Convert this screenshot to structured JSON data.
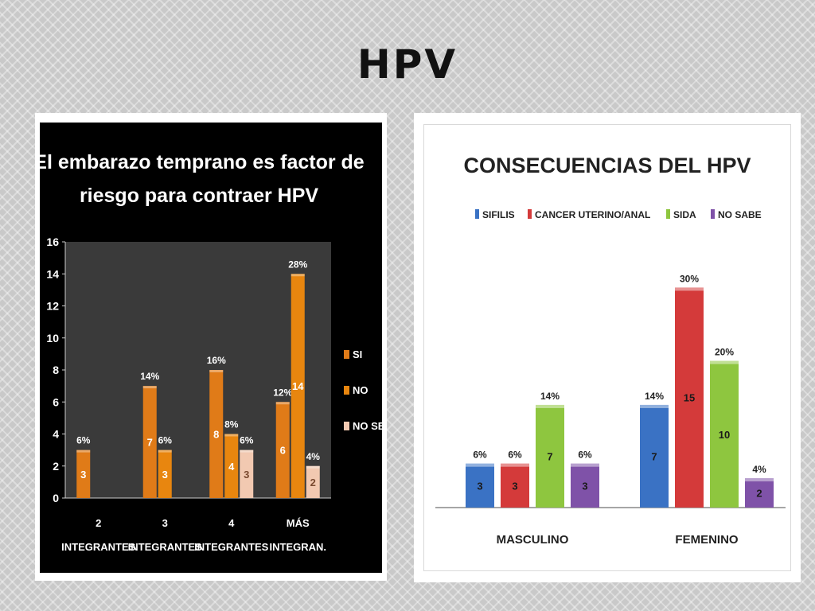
{
  "slide": {
    "title": "HPV"
  },
  "chart_data": [
    {
      "type": "bar",
      "title": "El embarazo temprano es factor de riesgo para contraer HPV",
      "title_lines": [
        "El embarazo temprano es factor de",
        "riesgo para contraer HPV"
      ],
      "categories": [
        "2 INTEGRANTES",
        "3 INTEGRANTES",
        "4 INTEGRANTES",
        "MÁS INTEGRAN."
      ],
      "category_lines": [
        [
          "2",
          "INTEGRANTES"
        ],
        [
          "3",
          "INTEGRANTES"
        ],
        [
          "4",
          "INTEGRANTES"
        ],
        [
          "MÁS",
          "INTEGRAN."
        ]
      ],
      "series": [
        {
          "name": "SI",
          "color": "#e07b18",
          "values": [
            3,
            7,
            8,
            6
          ],
          "value_labels": [
            "3",
            "7",
            "8",
            "6"
          ],
          "percent_labels": [
            "6%",
            "14%",
            "16%",
            "12%"
          ]
        },
        {
          "name": "NO",
          "color": "#e8860f",
          "values": [
            null,
            3,
            4,
            14
          ],
          "value_labels": [
            null,
            "3",
            "4",
            "14"
          ],
          "percent_labels": [
            null,
            "6%",
            "8%",
            "28%"
          ]
        },
        {
          "name": "NO SE",
          "color": "#f2c9b1",
          "values": [
            null,
            null,
            3,
            2
          ],
          "value_labels": [
            null,
            null,
            "3",
            "2"
          ],
          "percent_labels": [
            null,
            null,
            "6%",
            "4%"
          ]
        }
      ],
      "ylim": [
        0,
        16
      ],
      "yticks": [
        0,
        2,
        4,
        6,
        8,
        10,
        12,
        14,
        16
      ],
      "legend": "right",
      "grid": false
    },
    {
      "type": "bar",
      "title": "CONSECUENCIAS DEL HPV",
      "categories": [
        "MASCULINO",
        "FEMENINO"
      ],
      "series": [
        {
          "name": "SIFILIS",
          "color": "#3a72c4",
          "values": [
            3,
            7
          ],
          "value_labels": [
            "3",
            "7"
          ],
          "percent_labels": [
            "6%",
            "14%"
          ]
        },
        {
          "name": "CANCER UTERINO/ANAL",
          "color": "#d43a3a",
          "values": [
            3,
            15
          ],
          "value_labels": [
            "3",
            "15"
          ],
          "percent_labels": [
            "6%",
            "30%"
          ]
        },
        {
          "name": "SIDA",
          "color": "#8ec63f",
          "values": [
            7,
            10
          ],
          "value_labels": [
            "7",
            "10"
          ],
          "percent_labels": [
            "14%",
            "20%"
          ]
        },
        {
          "name": "NO SABE",
          "color": "#7f52a8",
          "values": [
            3,
            2
          ],
          "value_labels": [
            "3",
            "2"
          ],
          "percent_labels": [
            "6%",
            "4%"
          ]
        }
      ],
      "ylim": [
        0,
        16
      ],
      "legend": "top",
      "grid": false
    }
  ]
}
